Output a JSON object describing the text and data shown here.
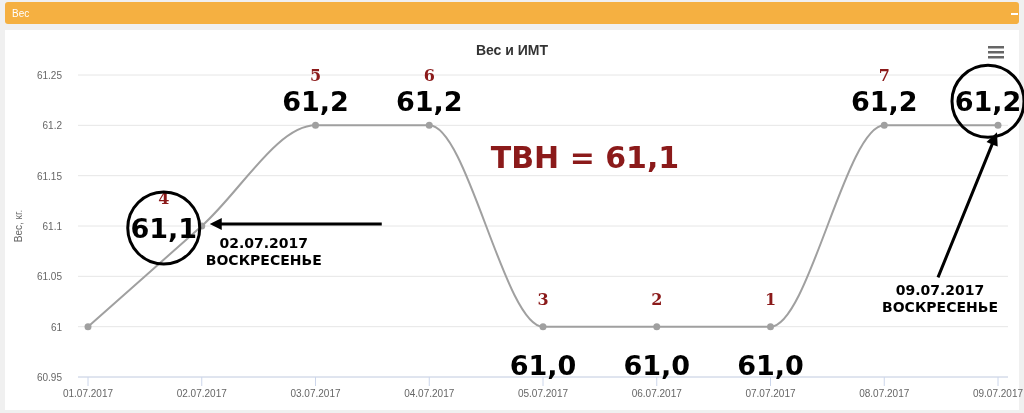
{
  "chart_data": {
    "type": "line",
    "title": "Вес и ИМТ",
    "ylabel": "Вес, кг.",
    "categories": [
      "01.07.2017",
      "02.07.2017",
      "03.07.2017",
      "04.07.2017",
      "05.07.2017",
      "06.07.2017",
      "07.07.2017",
      "08.07.2017",
      "09.07.2017"
    ],
    "series": [
      {
        "color": "#a0a0a0",
        "values": [
          61,
          61.1,
          61.2,
          61.2,
          61,
          61,
          61,
          61.2,
          61.2
        ],
        "value_labels": [
          null,
          "61,1",
          "61,2",
          "61,2",
          "61,0",
          "61,0",
          "61,0",
          "61,2",
          "61,2"
        ]
      }
    ],
    "ylim": [
      60.95,
      61.25
    ],
    "yticks": [
      60.95,
      61,
      61.05,
      61.1,
      61.15,
      61.2,
      61.25
    ],
    "grid": "y",
    "marker": "circle",
    "annotations": [
      "Вес",
      "ТВН = 61,1",
      {
        "text": "4",
        "x": "02.07.2017",
        "y": 61.1
      },
      {
        "text": "5",
        "x": "03.07.2017",
        "y": 61.2
      },
      {
        "text": "6",
        "x": "04.07.2017",
        "y": 61.2
      },
      {
        "text": "3",
        "x": "05.07.2017",
        "y": 61
      },
      {
        "text": "2",
        "x": "06.07.2017",
        "y": 61
      },
      {
        "text": "1",
        "x": "07.07.2017",
        "y": 61
      },
      {
        "text": "7",
        "x": "08.07.2017",
        "y": 61.2
      },
      {
        "text": "02.07.2017\nВОСКРЕСЕНЬЕ",
        "x": "02.07.2017",
        "y": 61.1
      },
      "09.07.2017\nВОСКРЕСЕНЬЕ"
    ]
  }
}
